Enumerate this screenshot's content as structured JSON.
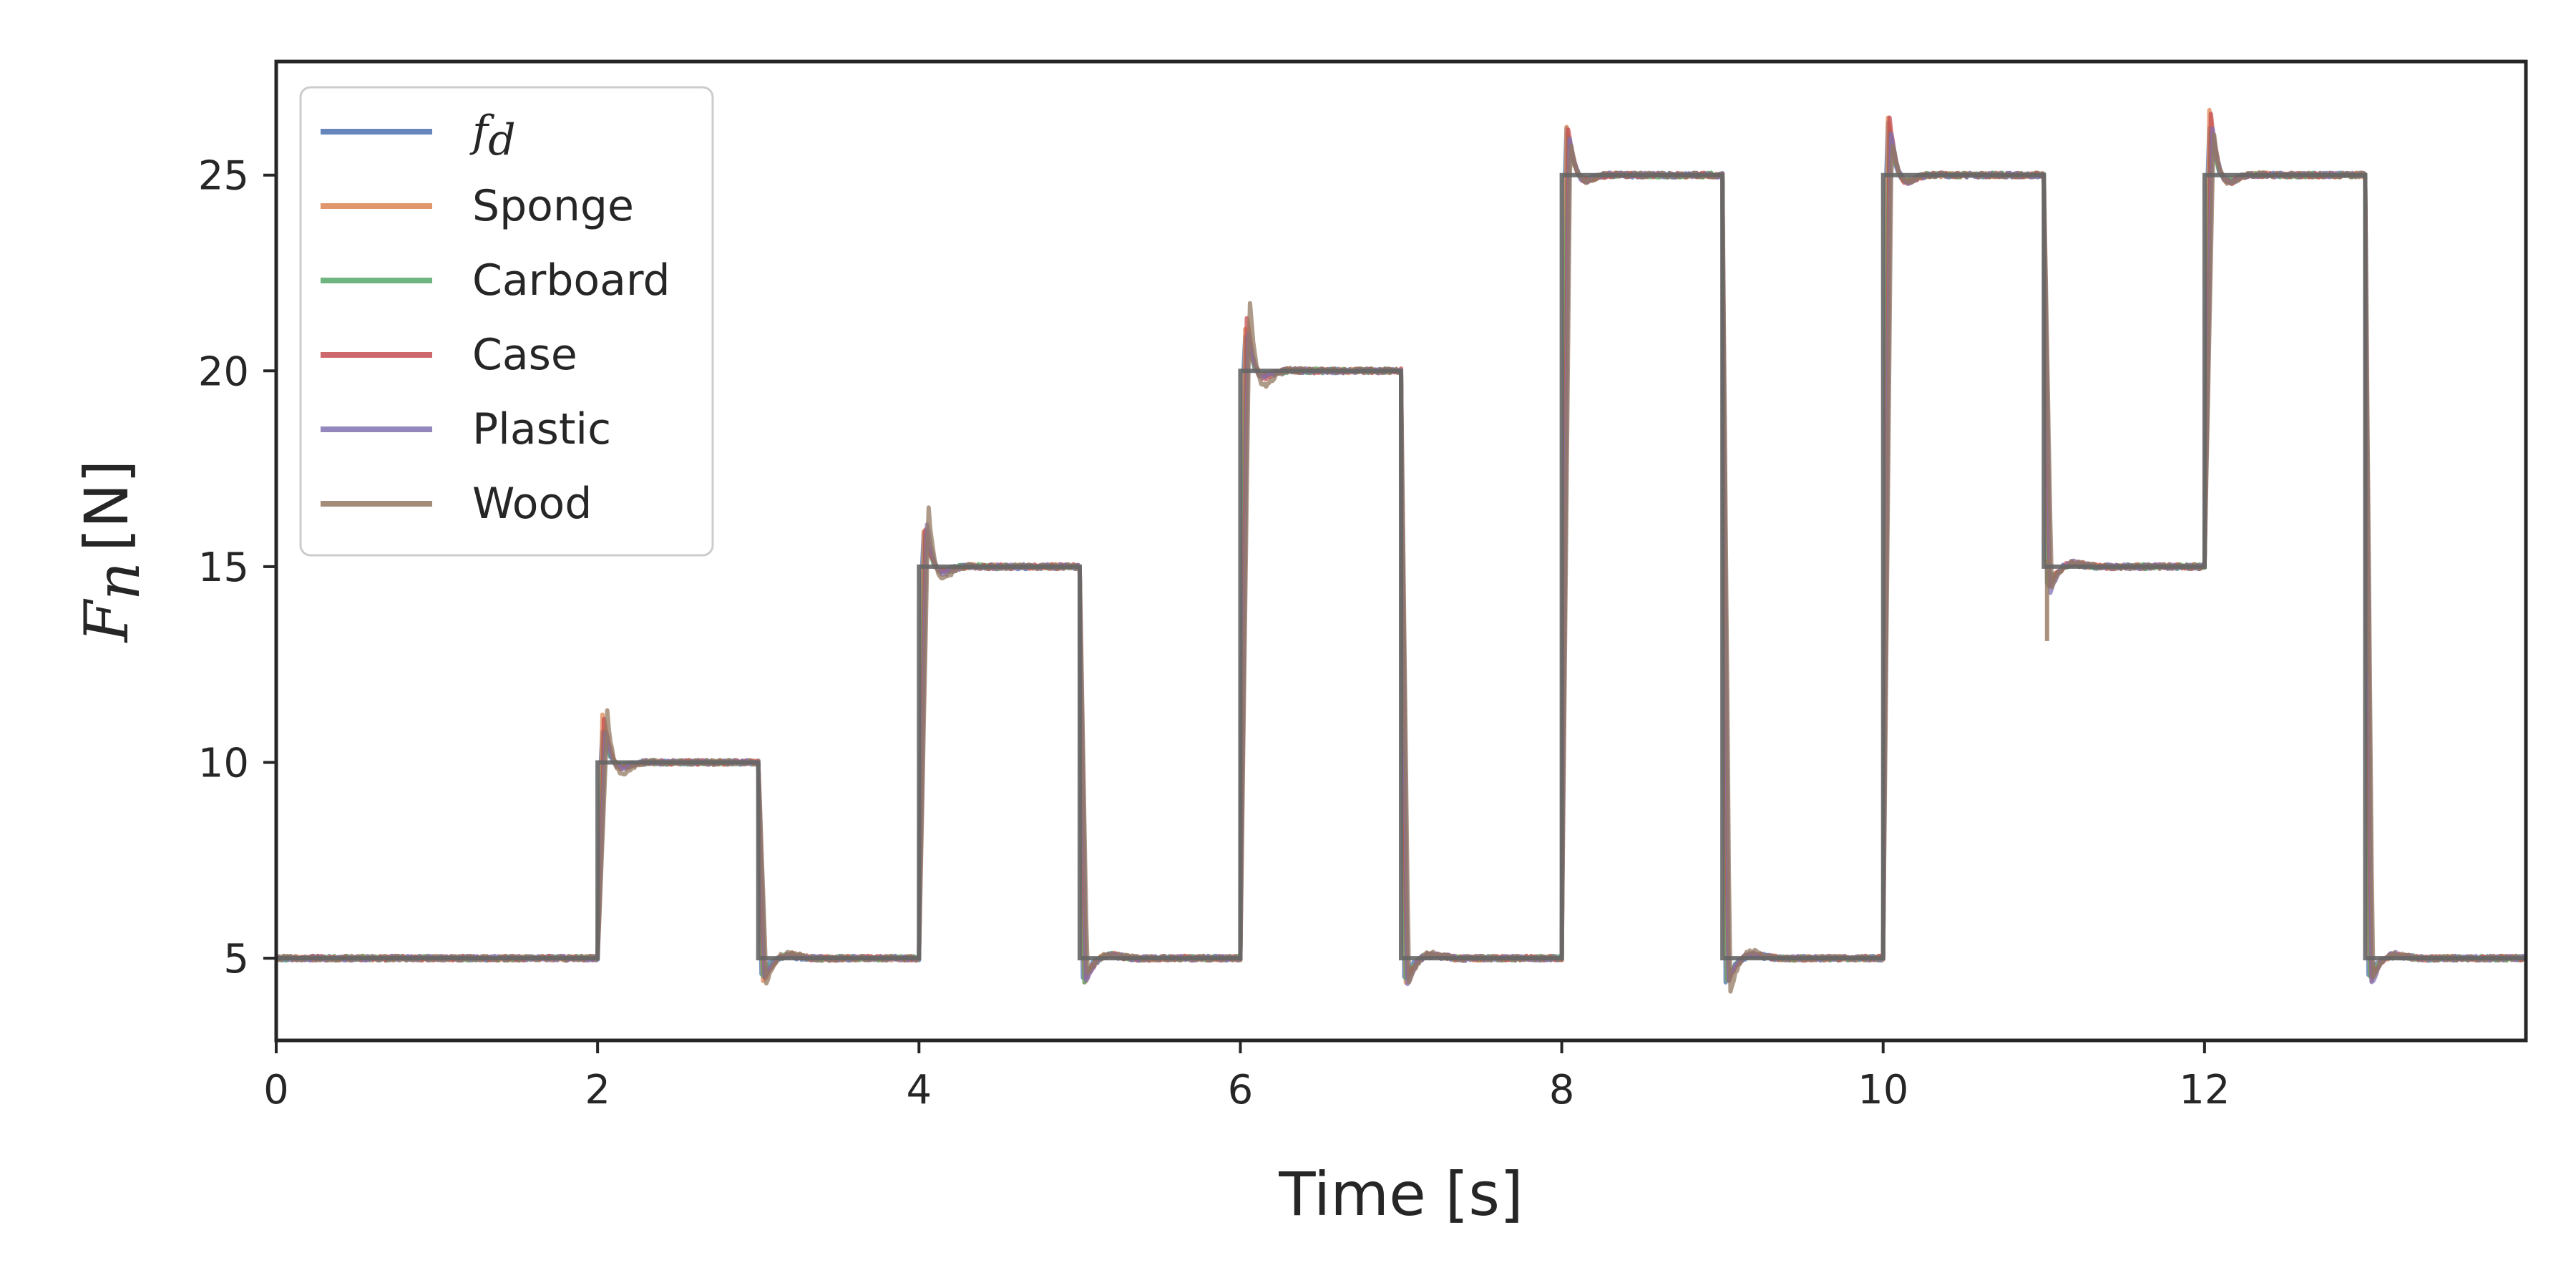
{
  "chart_data": {
    "type": "line",
    "title": "",
    "xlabel": "Time [s]",
    "ylabel": "F_n [N]",
    "ylabel_parts": {
      "symbol": "F",
      "subscript": "n",
      "unit": "[N]"
    },
    "xlim": [
      0,
      14
    ],
    "ylim": [
      2.9,
      27.9
    ],
    "xticks": [
      0,
      2,
      4,
      6,
      8,
      10,
      12
    ],
    "yticks": [
      5,
      10,
      15,
      20,
      25
    ],
    "grid": false,
    "legend_position": "top-left",
    "setpoint_steps": [
      {
        "t_start": 0,
        "t_end": 2,
        "value": 5
      },
      {
        "t_start": 2,
        "t_end": 3,
        "value": 10
      },
      {
        "t_start": 3,
        "t_end": 4,
        "value": 5
      },
      {
        "t_start": 4,
        "t_end": 5,
        "value": 15
      },
      {
        "t_start": 5,
        "t_end": 6,
        "value": 5
      },
      {
        "t_start": 6,
        "t_end": 7,
        "value": 20
      },
      {
        "t_start": 7,
        "t_end": 8,
        "value": 5
      },
      {
        "t_start": 8,
        "t_end": 9,
        "value": 25
      },
      {
        "t_start": 9,
        "t_end": 10,
        "value": 5
      },
      {
        "t_start": 10,
        "t_end": 11,
        "value": 25
      },
      {
        "t_start": 11,
        "t_end": 12,
        "value": 15
      },
      {
        "t_start": 12,
        "t_end": 13,
        "value": 25
      },
      {
        "t_start": 13,
        "t_end": 14,
        "value": 5
      }
    ],
    "series": [
      {
        "name": "f_d",
        "legend_symbol": "f",
        "legend_subscript": "d",
        "color": "#4C72B0",
        "overshoot": [
          1.0,
          1.1,
          1.1,
          1.4,
          1.6,
          1.5,
          1.3
        ],
        "undershoot": [
          0.4,
          0.5,
          0.5,
          0.6,
          0.4
        ]
      },
      {
        "name": "Sponge",
        "color": "#DD8452",
        "overshoot": [
          1.3,
          1.0,
          1.2,
          1.3,
          1.6,
          1.8,
          1.2
        ],
        "undershoot": [
          0.7,
          0.7,
          0.7,
          0.7,
          0.5
        ]
      },
      {
        "name": "Carboard",
        "color": "#55A868",
        "overshoot": [
          0.9,
          1.0,
          1.1,
          1.2,
          1.3,
          1.3,
          1.1
        ],
        "undershoot": [
          0.5,
          0.6,
          0.6,
          0.6,
          0.5
        ]
      },
      {
        "name": "Case",
        "color": "#C44E52",
        "overshoot": [
          1.2,
          1.1,
          1.5,
          1.3,
          1.6,
          1.7,
          1.3
        ],
        "undershoot": [
          0.6,
          0.6,
          0.6,
          0.6,
          0.6
        ]
      },
      {
        "name": "Plastic",
        "color": "#8172B3",
        "overshoot": [
          1.0,
          1.4,
          1.3,
          1.2,
          1.4,
          1.6,
          1.2
        ],
        "undershoot": [
          0.5,
          0.6,
          0.7,
          0.6,
          0.7
        ]
      },
      {
        "name": "Wood",
        "color": "#937860",
        "overshoot": [
          2.0,
          2.3,
          2.7,
          1.1,
          1.2,
          1.6,
          1.2
        ],
        "undershoot": [
          0.8,
          0.5,
          0.7,
          1.0,
          0.6
        ]
      }
    ],
    "wood_downspike_at_11": 13.1,
    "final_overlay_color": "#666666"
  }
}
